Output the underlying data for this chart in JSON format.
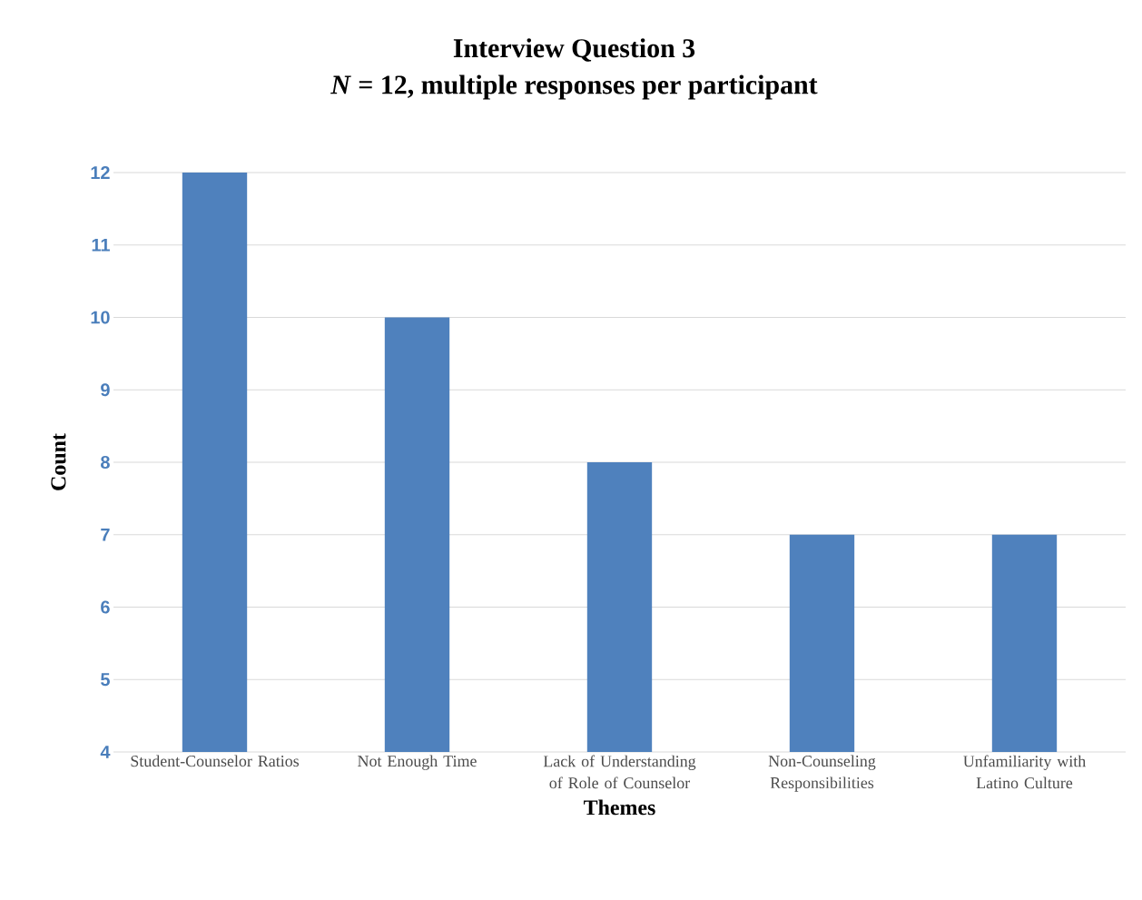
{
  "chart_data": {
    "type": "bar",
    "title": "Interview Question 3",
    "subtitle": "*N* = 12, multiple responses per participant",
    "xlabel": "Themes",
    "ylabel": "Count",
    "categories": [
      "Student-Counselor Ratios",
      "Not Enough Time",
      "Lack of Understanding of Role of Counselor",
      "Non-Counseling Responsibilities",
      "Unfamiliarity with Latino Culture"
    ],
    "values": [
      12,
      10,
      8,
      7,
      7
    ],
    "color": "#4f81bd",
    "ylim": [
      4,
      12
    ],
    "yticks": [
      4,
      5,
      6,
      7,
      8,
      9,
      10,
      11,
      12
    ],
    "grid": "y"
  }
}
